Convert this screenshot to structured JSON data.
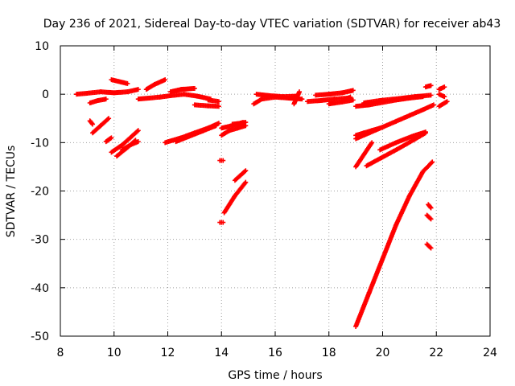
{
  "chart_data": {
    "type": "scatter",
    "title": "Day 236 of 2021, Sidereal Day-to-day VTEC variation (SDTVAR) for receiver ab43",
    "xlabel": "GPS time / hours",
    "ylabel": "SDTVAR / TECUs",
    "xlim": [
      8,
      24
    ],
    "ylim": [
      -50,
      10
    ],
    "grid": true,
    "marker": "plus",
    "color": "#ff0000",
    "x_ticks": [
      "8",
      "10",
      "12",
      "14",
      "16",
      "18",
      "20",
      "22",
      "24"
    ],
    "y_ticks": [
      "10",
      "0",
      "-10",
      "-20",
      "-30",
      "-40",
      "-50"
    ],
    "series": [
      {
        "name": "seg1",
        "x": [
          8.6,
          9.0,
          9.5,
          10.0,
          10.5,
          10.9
        ],
        "y": [
          0.0,
          0.2,
          0.5,
          0.3,
          0.5,
          1.0
        ]
      },
      {
        "name": "seg2",
        "x": [
          9.1,
          9.4,
          9.7
        ],
        "y": [
          -1.8,
          -1.3,
          -1.0
        ]
      },
      {
        "name": "seg3",
        "x": [
          9.9,
          10.2,
          10.5
        ],
        "y": [
          3.0,
          2.6,
          2.2
        ]
      },
      {
        "name": "seg4",
        "x": [
          9.1,
          9.2
        ],
        "y": [
          -5.5,
          -6.2
        ]
      },
      {
        "name": "seg5",
        "x": [
          9.2,
          9.5,
          9.8
        ],
        "y": [
          -8.0,
          -6.5,
          -5.0
        ]
      },
      {
        "name": "seg6",
        "x": [
          9.7,
          9.9
        ],
        "y": [
          -9.8,
          -9.0
        ]
      },
      {
        "name": "seg7",
        "x": [
          9.9,
          10.3,
          10.6,
          10.9
        ],
        "y": [
          -12.0,
          -10.5,
          -9.0,
          -7.5
        ]
      },
      {
        "name": "seg8",
        "x": [
          10.1,
          10.5,
          10.8
        ],
        "y": [
          -12.8,
          -11.0,
          -9.5
        ]
      },
      {
        "name": "seg9",
        "x": [
          10.3,
          10.6,
          10.9
        ],
        "y": [
          -11.5,
          -10.5,
          -9.8
        ]
      },
      {
        "name": "seg10",
        "x": [
          10.9,
          11.3,
          11.7,
          12.1,
          12.6,
          13.1,
          13.6
        ],
        "y": [
          -1.0,
          -0.8,
          -0.6,
          -0.3,
          0.0,
          -0.4,
          -1.0
        ]
      },
      {
        "name": "seg11",
        "x": [
          11.2,
          11.5,
          11.9
        ],
        "y": [
          1.0,
          2.0,
          3.0
        ]
      },
      {
        "name": "seg12",
        "x": [
          12.1,
          12.5,
          13.0
        ],
        "y": [
          0.5,
          1.0,
          1.2
        ]
      },
      {
        "name": "seg13",
        "x": [
          13.0,
          13.5,
          13.9
        ],
        "y": [
          -2.2,
          -2.4,
          -2.5
        ]
      },
      {
        "name": "seg14",
        "x": [
          13.5,
          13.9
        ],
        "y": [
          -1.2,
          -1.5
        ]
      },
      {
        "name": "seg15",
        "x": [
          11.9,
          12.5,
          13.0,
          13.5,
          13.9
        ],
        "y": [
          -10.0,
          -9.0,
          -8.0,
          -7.0,
          -6.0
        ]
      },
      {
        "name": "seg16",
        "x": [
          12.3,
          12.8,
          13.3,
          13.8
        ],
        "y": [
          -9.8,
          -8.7,
          -7.6,
          -6.5
        ]
      },
      {
        "name": "seg17",
        "x": [
          14.0,
          14.3,
          14.6,
          14.9
        ],
        "y": [
          -8.5,
          -7.5,
          -7.0,
          -6.5
        ]
      },
      {
        "name": "seg18",
        "x": [
          14.0,
          14.4,
          14.8
        ],
        "y": [
          -7.0,
          -6.5,
          -5.8
        ]
      },
      {
        "name": "seg19",
        "x": [
          14.4,
          14.7,
          14.9
        ],
        "y": [
          -6.2,
          -6.0,
          -5.8
        ]
      },
      {
        "name": "seg20",
        "x": [
          14.0
        ],
        "y": [
          -13.7
        ]
      },
      {
        "name": "seg21",
        "x": [
          14.0
        ],
        "y": [
          -26.5
        ]
      },
      {
        "name": "seg22",
        "x": [
          14.1,
          14.5,
          14.9
        ],
        "y": [
          -24.5,
          -21.0,
          -18.2
        ]
      },
      {
        "name": "seg23",
        "x": [
          14.5,
          14.7,
          14.9
        ],
        "y": [
          -17.8,
          -16.8,
          -15.8
        ]
      },
      {
        "name": "seg24",
        "x": [
          15.2,
          15.5,
          16.0,
          16.5,
          17.0
        ],
        "y": [
          -2.0,
          -1.0,
          -0.6,
          -0.8,
          -1.0
        ]
      },
      {
        "name": "seg25",
        "x": [
          15.3,
          15.8,
          16.3,
          16.8
        ],
        "y": [
          0.0,
          -0.3,
          -0.5,
          -0.4
        ]
      },
      {
        "name": "seg26",
        "x": [
          16.7,
          16.9
        ],
        "y": [
          -2.0,
          0.5
        ]
      },
      {
        "name": "seg27",
        "x": [
          17.2,
          17.7,
          18.2,
          18.7
        ],
        "y": [
          -1.5,
          -1.3,
          -1.0,
          -0.8
        ]
      },
      {
        "name": "seg28",
        "x": [
          17.5,
          18.0,
          18.5,
          18.9
        ],
        "y": [
          -0.2,
          0.0,
          0.3,
          0.8
        ]
      },
      {
        "name": "seg29",
        "x": [
          18.0,
          18.5,
          18.9
        ],
        "y": [
          -2.0,
          -1.6,
          -1.2
        ]
      },
      {
        "name": "seg30",
        "x": [
          18.6,
          18.8
        ],
        "y": [
          -1.0,
          -0.6
        ]
      },
      {
        "name": "seg31",
        "x": [
          19.0,
          19.5,
          20.0,
          20.5,
          21.0,
          21.5
        ],
        "y": [
          -2.5,
          -2.2,
          -1.7,
          -1.2,
          -0.8,
          -0.5
        ]
      },
      {
        "name": "seg32",
        "x": [
          19.3,
          19.9,
          20.6,
          21.2,
          21.8
        ],
        "y": [
          -1.8,
          -1.3,
          -0.9,
          -0.5,
          -0.2
        ]
      },
      {
        "name": "seg33",
        "x": [
          19.0,
          19.5,
          20.0,
          20.5,
          21.0,
          21.5,
          21.9
        ],
        "y": [
          -9.2,
          -8.0,
          -6.8,
          -5.6,
          -4.4,
          -3.2,
          -2.2
        ]
      },
      {
        "name": "seg34",
        "x": [
          19.0,
          19.3,
          19.6,
          19.9
        ],
        "y": [
          -8.5,
          -8.0,
          -7.5,
          -7.0
        ]
      },
      {
        "name": "seg35",
        "x": [
          19.0,
          19.3,
          19.6
        ],
        "y": [
          -15.0,
          -12.5,
          -10.0
        ]
      },
      {
        "name": "seg36",
        "x": [
          19.4,
          20.0,
          20.6,
          21.2,
          21.6
        ],
        "y": [
          -14.8,
          -13.0,
          -11.2,
          -9.3,
          -8.0
        ]
      },
      {
        "name": "seg37",
        "x": [
          19.9,
          20.5,
          21.1,
          21.6
        ],
        "y": [
          -11.5,
          -10.0,
          -8.7,
          -7.8
        ]
      },
      {
        "name": "seg38",
        "x": [
          19.0,
          19.5,
          20.0,
          20.5,
          21.0,
          21.5,
          21.85
        ],
        "y": [
          -48.0,
          -41.0,
          -34.0,
          -27.0,
          -21.0,
          -16.0,
          -14.0
        ]
      },
      {
        "name": "seg39",
        "x": [
          21.6,
          21.8
        ],
        "y": [
          1.5,
          1.8
        ]
      },
      {
        "name": "seg40",
        "x": [
          21.7,
          21.8
        ],
        "y": [
          -22.8,
          -23.5
        ]
      },
      {
        "name": "seg41",
        "x": [
          21.65,
          21.8
        ],
        "y": [
          -25.0,
          -25.8
        ]
      },
      {
        "name": "seg42",
        "x": [
          21.65,
          21.8
        ],
        "y": [
          -31.0,
          -31.8
        ]
      },
      {
        "name": "seg43",
        "x": [
          22.1,
          22.3
        ],
        "y": [
          1.0,
          1.5
        ]
      },
      {
        "name": "seg44",
        "x": [
          22.1,
          22.3
        ],
        "y": [
          0.0,
          -0.5
        ]
      },
      {
        "name": "seg45",
        "x": [
          22.1,
          22.4
        ],
        "y": [
          -2.5,
          -1.5
        ]
      }
    ]
  }
}
